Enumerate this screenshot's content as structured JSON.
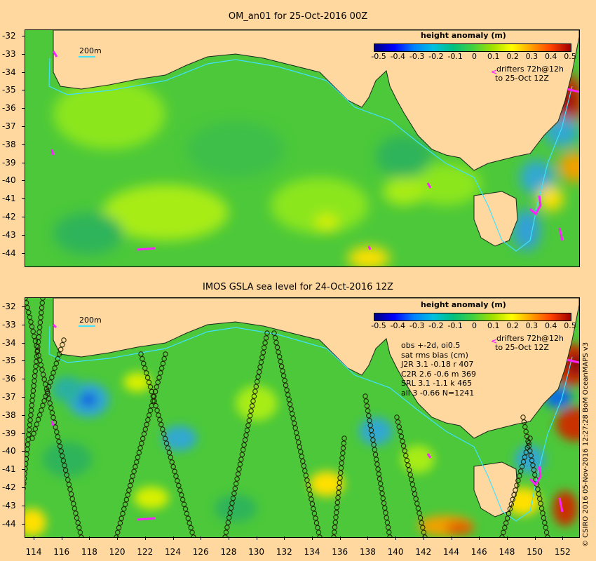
{
  "panel1": {
    "title": "OM_an01 for 25-Oct-2016 00Z",
    "colorbar_title": "height anomaly (m)",
    "colorbar_labels": [
      "-0.5",
      "-0.4",
      "-0.3",
      "-0.2",
      "-0.1",
      "0",
      "0.1",
      "0.2",
      "0.3",
      "0.4",
      "0.5"
    ],
    "drifter_note_1": "drifters 72h@12h",
    "drifter_note_2": "to 25-Oct 12Z",
    "scale_label": "200m"
  },
  "panel2": {
    "title": "IMOS GSLA sea level  for 24-Oct-2016 12Z",
    "colorbar_title": "height anomaly (m)",
    "colorbar_labels": [
      "-0.5",
      "-0.4",
      "-0.3",
      "-0.2",
      "-0.1",
      "0",
      "0.1",
      "0.2",
      "0.3",
      "0.4",
      "0.5"
    ],
    "drifter_note_1": "drifters 72h@12h",
    "drifter_note_2": "to 25-Oct 12Z",
    "scale_label": "200m",
    "stats": {
      "line1": "obs +-2d, oi0.5",
      "line2": "sat rms bias (cm)",
      "line3": "J2R   3.1 -0.18 r 407",
      "line4": "C2R   2.6 -0.6 m 369",
      "line5": "SRL   3.1 -1.1 k 465",
      "line6": "all   3 -0.66 N=1241"
    }
  },
  "lat_labels": [
    "-32",
    "-33",
    "-34",
    "-35",
    "-36",
    "-37",
    "-38",
    "-39",
    "-40",
    "-41",
    "-42",
    "-43",
    "-44"
  ],
  "lon_labels": [
    "114",
    "116",
    "118",
    "120",
    "122",
    "124",
    "126",
    "128",
    "130",
    "132",
    "134",
    "136",
    "138",
    "140",
    "142",
    "144",
    "146",
    "148",
    "150",
    "152"
  ],
  "credit": "© CSIRO 2016   05-Nov-2016 12:27:28 BoM OceanMAPS v3",
  "colors": {
    "land": "#ffd8a0",
    "sea_base": "#5ad23c",
    "contour_200m": "#40e0ff",
    "drifter": "#ff20ff"
  }
}
